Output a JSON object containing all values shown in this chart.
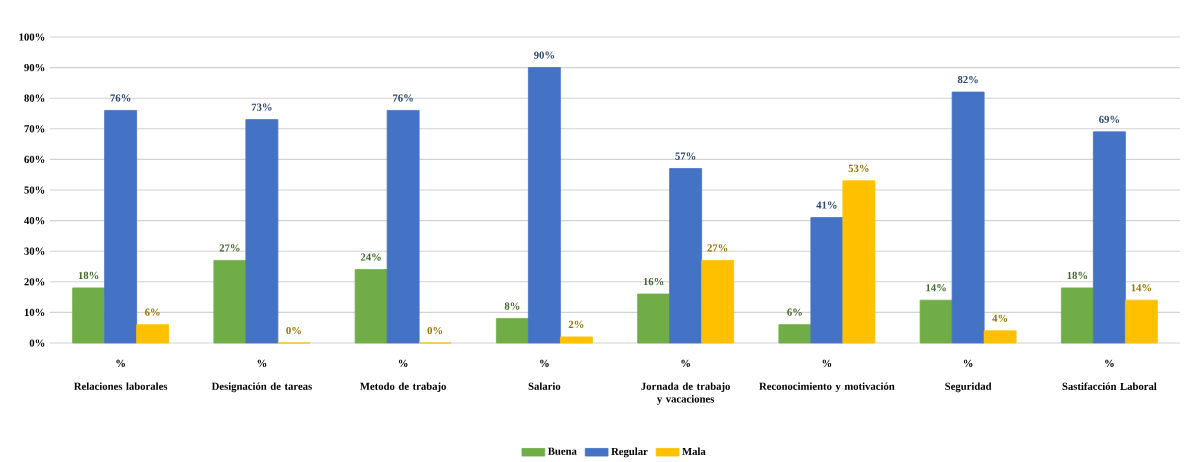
{
  "chart_data": {
    "type": "bar",
    "categories": [
      "Relaciones laborales",
      "Designación de tareas",
      "Metodo de trabajo",
      "Salario",
      "Jornada de trabajo y vacaciones",
      "Reconocimiento y motivación",
      "Seguridad",
      "Sastifacción Laboral"
    ],
    "series": [
      {
        "name": "Buena",
        "color": "#70ad47",
        "values": [
          18,
          27,
          24,
          8,
          16,
          6,
          14,
          18
        ],
        "value_labels": [
          "18%",
          "27%",
          "24%",
          "8%",
          "16%",
          "6%",
          "14%",
          "18%"
        ]
      },
      {
        "name": "Regular",
        "color": "#4472c4",
        "values": [
          76,
          73,
          76,
          90,
          57,
          41,
          82,
          69
        ],
        "value_labels": [
          "76%",
          "73%",
          "76%",
          "90%",
          "57%",
          "41%",
          "82%",
          "69%"
        ]
      },
      {
        "name": "Mala",
        "color": "#ffc000",
        "values": [
          6,
          0,
          0,
          2,
          27,
          53,
          4,
          14
        ],
        "value_labels": [
          "6%",
          "0%",
          "0%",
          "2%",
          "27%",
          "53%",
          "4%",
          "14%"
        ]
      }
    ],
    "ylim": [
      0,
      100
    ],
    "yticks": [
      {
        "value": 0,
        "label": "0%"
      },
      {
        "value": 10,
        "label": "10%"
      },
      {
        "value": 20,
        "label": "20%"
      },
      {
        "value": 30,
        "label": "30%"
      },
      {
        "value": 40,
        "label": "40%"
      },
      {
        "value": 50,
        "label": "50%"
      },
      {
        "value": 60,
        "label": "60%"
      },
      {
        "value": 70,
        "label": "70%"
      },
      {
        "value": 80,
        "label": "80%"
      },
      {
        "value": 90,
        "label": "90%"
      },
      {
        "value": 100,
        "label": "100%"
      }
    ],
    "annotations": [
      "%",
      "%",
      "%",
      "%",
      "%",
      "%",
      "%",
      "%"
    ],
    "grid": "y",
    "legend": "bottom"
  }
}
